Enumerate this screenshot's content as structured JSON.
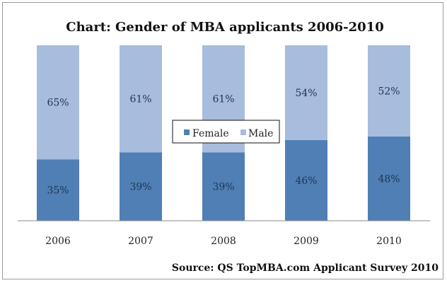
{
  "chart_data": {
    "type": "bar",
    "stacked": true,
    "title": "Chart: Gender of MBA applicants 2006-2010",
    "categories": [
      "2006",
      "2007",
      "2008",
      "2009",
      "2010"
    ],
    "series": [
      {
        "name": "Female",
        "values": [
          35,
          39,
          39,
          46,
          48
        ],
        "labels": [
          "35%",
          "39%",
          "39%",
          "46%",
          "48%"
        ],
        "color": "#4f7fb5"
      },
      {
        "name": "Male",
        "values": [
          65,
          61,
          61,
          54,
          52
        ],
        "labels": [
          "65%",
          "61%",
          "61%",
          "54%",
          "52%"
        ],
        "color": "#a8bcdd"
      }
    ],
    "ylim": [
      0,
      100
    ],
    "grid": false,
    "legend": "center",
    "source": "Source: QS TopMBA.com Applicant Survey 2010"
  }
}
